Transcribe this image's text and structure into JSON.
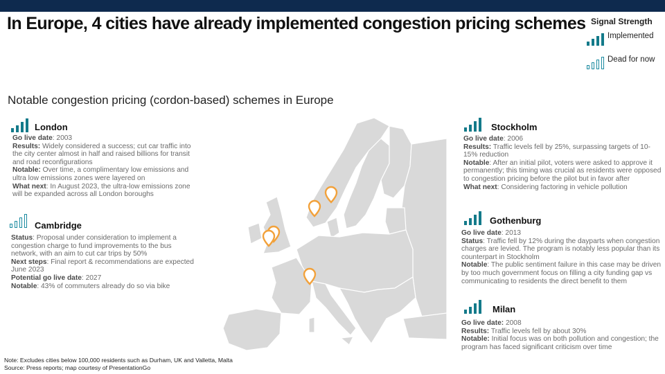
{
  "title": "In Europe, 4 cities have already implemented congestion pricing schemes",
  "subtitle": "Notable congestion pricing (cordon-based) schemes in Europe",
  "legend": {
    "title": "Signal Strength",
    "implemented": "Implemented",
    "dead": "Dead for now"
  },
  "colors": {
    "teal": "#137a8a",
    "pin": "#f2a13a",
    "map": "#d9d9d9",
    "header": "#0e2a4e"
  },
  "cities": {
    "london": {
      "name": "London",
      "l1_label": "Go live date",
      "l1_text": ": 2003",
      "l2_label": "Results:",
      "l2_text": " Widely considered a success; cut car traffic into the city center almost in half and raised billions for transit and road reconfigurations",
      "l3_label": "Notable:",
      "l3_text": " Over time, a complimentary low emissions and ultra low emissions zones were layered on",
      "l4_label": "What next",
      "l4_text": ": In August 2023, the ultra-low emissions zone will be expanded across all London boroughs"
    },
    "cambridge": {
      "name": "Cambridge",
      "l1_label": "Status",
      "l1_text": ": Proposal under consideration to implement a congestion charge to fund improvements to the bus network, with an aim to cut car trips by 50%",
      "l2_label": "Next steps",
      "l2_text": ": Final report & recommendations are expected June 2023",
      "l3_label": "Potential go live date",
      "l3_text": ": 2027",
      "l4_label": "Notable",
      "l4_text": ": 43% of commuters already do so via bike"
    },
    "stockholm": {
      "name": "Stockholm",
      "l1_label": "Go live date",
      "l1_text": ": 2006",
      "l2_label": "Results:",
      "l2_text": " Traffic levels fell by 25%, surpassing targets of 10-15% reduction",
      "l3_label": "Notable",
      "l3_text": ": After an initial pilot, voters were asked to approve it permanently; this timing was crucial as residents were opposed to congestion pricing before the pilot but in favor after",
      "l4_label": "What next",
      "l4_text": ": Considering factoring in vehicle pollution"
    },
    "gothenburg": {
      "name": "Gothenburg",
      "l1_label": "Go live date",
      "l1_text": ": 2013",
      "l2_label": "Status",
      "l2_text": ": Traffic fell by 12% during the dayparts when congestion charges are levied. The program is notably less popular than its counterpart in Stockholm",
      "l3_label": "Notable",
      "l3_text": ": The public sentiment failure in this case may be driven by too much government focus on filling a city funding gap vs communicating to residents the direct benefit to them"
    },
    "milan": {
      "name": "Milan",
      "l1_label": "Go live date:",
      "l1_text": " 2008",
      "l2_label": "Results:",
      "l2_text": " Traffic levels fell by about 30%",
      "l3_label": "Notable:",
      "l3_text": " Initial focus was on both pollution and congestion; the program has faced significant criticism over time"
    }
  },
  "note": "Note: Excludes cities below 100,000 residents such as Durham, UK and Valletta, Malta",
  "source": "Source: Press reports; map courtesy of PresentationGo"
}
